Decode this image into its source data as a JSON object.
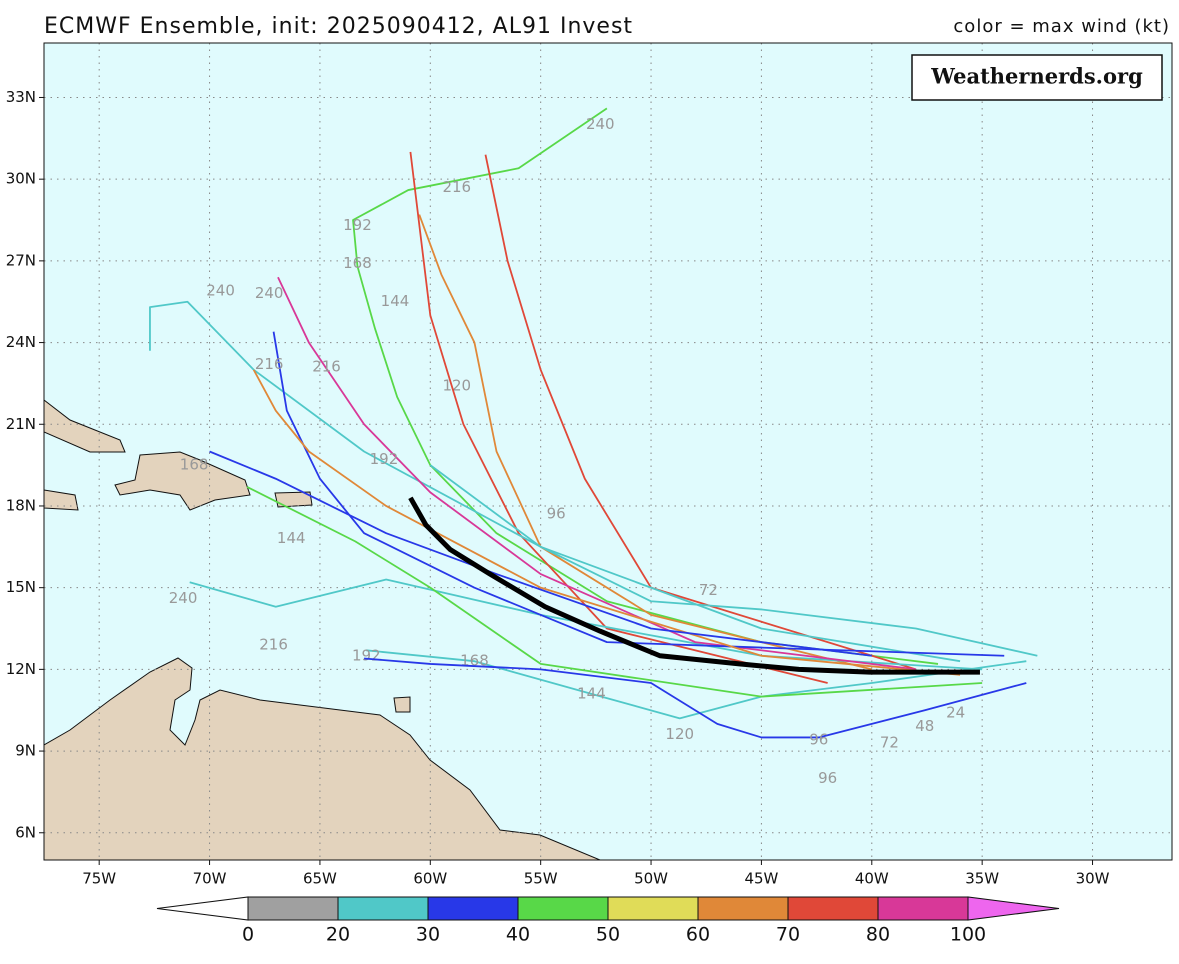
{
  "header": {
    "title": "ECMWF Ensemble, init: 2025090412, AL91 Invest",
    "legend_note": "color = max wind (kt)",
    "watermark": "Weathernerds.org"
  },
  "map": {
    "xlim": [
      -77.5,
      -26.4
    ],
    "ylim": [
      5,
      35
    ],
    "grid": true,
    "xticks": [
      {
        "value": -75,
        "label": "75W"
      },
      {
        "value": -70,
        "label": "70W"
      },
      {
        "value": -65,
        "label": "65W"
      },
      {
        "value": -60,
        "label": "60W"
      },
      {
        "value": -55,
        "label": "55W"
      },
      {
        "value": -50,
        "label": "50W"
      },
      {
        "value": -45,
        "label": "45W"
      },
      {
        "value": -40,
        "label": "40W"
      },
      {
        "value": -35,
        "label": "35W"
      },
      {
        "value": -30,
        "label": "30W"
      }
    ],
    "yticks": [
      {
        "value": 6,
        "label": "6N"
      },
      {
        "value": 9,
        "label": "9N"
      },
      {
        "value": 12,
        "label": "12N"
      },
      {
        "value": 15,
        "label": "15N"
      },
      {
        "value": 18,
        "label": "18N"
      },
      {
        "value": 21,
        "label": "21N"
      },
      {
        "value": 24,
        "label": "24N"
      },
      {
        "value": 27,
        "label": "27N"
      },
      {
        "value": 30,
        "label": "30N"
      },
      {
        "value": 33,
        "label": "33N"
      }
    ],
    "tracks": [
      {
        "color": "#58d848",
        "lon": [
          -37,
          -45,
          -52,
          -57,
          -60,
          -61.5,
          -62.5,
          -63.3,
          -63.5,
          -61,
          -56,
          -52
        ],
        "lat": [
          12.2,
          13,
          14.5,
          17,
          19.5,
          22,
          24.5,
          26.8,
          28.5,
          29.6,
          30.4,
          32.6
        ],
        "labels": [
          {
            "hour": 240,
            "lon": -52.3,
            "lat": 32.0
          },
          {
            "hour": 216,
            "lon": -58.8,
            "lat": 29.7
          },
          {
            "hour": 192,
            "lon": -63.3,
            "lat": 28.3
          },
          {
            "hour": 168,
            "lon": -63.3,
            "lat": 26.9
          },
          {
            "hour": 144,
            "lon": -61.6,
            "lat": 25.5
          },
          {
            "hour": 120,
            "lon": -58.8,
            "lat": 22.4
          }
        ]
      },
      {
        "color": "#e04838",
        "lon": [
          -38,
          -50,
          -53,
          -55,
          -56.5,
          -57.5
        ],
        "lat": [
          12,
          15,
          19,
          23,
          27,
          30.9
        ],
        "labels": []
      },
      {
        "color": "#e08838",
        "lon": [
          -40,
          -50,
          -55,
          -57,
          -58,
          -59.5,
          -60.5
        ],
        "lat": [
          12,
          14,
          16.5,
          20,
          24,
          26.5,
          28.7
        ],
        "labels": []
      },
      {
        "color": "#e04838",
        "lon": [
          -42,
          -52,
          -56,
          -58.5,
          -60,
          -60.9
        ],
        "lat": [
          11.5,
          13.5,
          17,
          21,
          25,
          31
        ],
        "labels": []
      },
      {
        "color": "#50c8c8",
        "lon": [
          -35,
          -45,
          -55,
          -62,
          -67,
          -70.9
        ],
        "lat": [
          12,
          12.5,
          14,
          15.3,
          14.3,
          15.2
        ],
        "labels": [
          {
            "hour": 240,
            "lon": -71.2,
            "lat": 14.6
          },
          {
            "hour": 216,
            "lon": -67.1,
            "lat": 12.9
          }
        ]
      },
      {
        "color": "#50c8c8",
        "lon": [
          -36,
          -45,
          -55,
          -63,
          -68,
          -71,
          -72.7,
          -72.7
        ],
        "lat": [
          12.3,
          13.5,
          16.5,
          20,
          23,
          25.5,
          25.3,
          23.7
        ],
        "labels": [
          {
            "hour": 240,
            "lon": -69.5,
            "lat": 25.9
          }
        ]
      },
      {
        "color": "#d83898",
        "lon": [
          -38,
          -48,
          -55,
          -60,
          -63,
          -65.5,
          -66.9
        ],
        "lat": [
          12,
          13,
          15.5,
          18.5,
          21,
          24,
          26.4
        ],
        "labels": [
          {
            "hour": 240,
            "lon": -67.3,
            "lat": 25.8
          }
        ]
      },
      {
        "color": "#2838e8",
        "lon": [
          -34,
          -45,
          -52,
          -58,
          -63,
          -65,
          -66.5,
          -67.1
        ],
        "lat": [
          12.5,
          12.8,
          13,
          15,
          17,
          19,
          21.5,
          24.4
        ],
        "labels": [
          {
            "hour": 216,
            "lon": -64.7,
            "lat": 23.1
          }
        ]
      },
      {
        "color": "#50c8c8",
        "lon": [
          -33,
          -40,
          -45,
          -48.7,
          -52.7,
          -58,
          -62.9
        ],
        "lat": [
          12.3,
          11.5,
          11,
          10.2,
          11.1,
          12.3,
          12.7
        ],
        "labels": [
          {
            "hour": 192,
            "lon": -62.9,
            "lat": 12.5
          },
          {
            "hour": 168,
            "lon": -58.0,
            "lat": 12.3
          },
          {
            "hour": 144,
            "lon": -52.7,
            "lat": 11.1
          },
          {
            "hour": 120,
            "lon": -48.7,
            "lat": 9.6
          }
        ]
      },
      {
        "color": "#e08838",
        "lon": [
          -36,
          -45,
          -55,
          -62,
          -65.5,
          -67,
          -68
        ],
        "lat": [
          11.8,
          12.5,
          15,
          18,
          20,
          21.5,
          23
        ],
        "labels": [
          {
            "hour": 216,
            "lon": -67.3,
            "lat": 23.2
          }
        ]
      },
      {
        "color": "#58d848",
        "lon": [
          -35,
          -45,
          -55,
          -60,
          -63.4,
          -68.3
        ],
        "lat": [
          11.5,
          11,
          12.2,
          15,
          16.7,
          18.7
        ],
        "labels": [
          {
            "hour": 144,
            "lon": -66.3,
            "lat": 16.8
          }
        ]
      },
      {
        "color": "#2838e8",
        "lon": [
          -33,
          -37.6,
          -40,
          -42.4,
          -45,
          -47,
          -50,
          -55,
          -60,
          -63
        ],
        "lat": [
          11.5,
          10.5,
          10,
          9.5,
          9.5,
          10,
          11.5,
          12,
          12.2,
          12.4
        ],
        "labels": [
          {
            "hour": 96,
            "lon": -42.4,
            "lat": 9.4
          },
          {
            "hour": 96,
            "lon": -42.0,
            "lat": 8.0
          },
          {
            "hour": 72,
            "lon": -39.2,
            "lat": 9.3
          },
          {
            "hour": 48,
            "lon": -37.6,
            "lat": 9.9
          },
          {
            "hour": 24,
            "lon": -36.2,
            "lat": 10.4
          }
        ]
      },
      {
        "color": "#50c8c8",
        "lon": [
          -32.5,
          -38,
          -45,
          -50,
          -55,
          -60
        ],
        "lat": [
          12.5,
          13.5,
          14.2,
          14.5,
          16.5,
          19.5
        ],
        "labels": [
          {
            "hour": 72,
            "lon": -47.4,
            "lat": 14.9
          },
          {
            "hour": 96,
            "lon": -54.3,
            "lat": 17.7
          }
        ]
      },
      {
        "color": "#2838e8",
        "lon": [
          -40,
          -50,
          -57,
          -62,
          -67,
          -70
        ],
        "lat": [
          12.5,
          13.5,
          15.5,
          17,
          19,
          20
        ],
        "labels": [
          {
            "hour": 168,
            "lon": -70.7,
            "lat": 19.5
          },
          {
            "hour": 192,
            "lon": -62.1,
            "lat": 19.7
          }
        ]
      }
    ],
    "mean_track": {
      "color": "#000000",
      "lon": [
        -60.9,
        -60.2,
        -59.1,
        -57.3,
        -54.8,
        -52.3,
        -49.6,
        -46.0,
        -43.3,
        -40.1,
        -36.9,
        -35.1
      ],
      "lat": [
        18.3,
        17.3,
        16.4,
        15.5,
        14.3,
        13.4,
        12.5,
        12.2,
        12.0,
        11.9,
        11.9,
        11.9
      ]
    }
  },
  "colorbar": {
    "bounds": [
      0,
      20,
      30,
      40,
      50,
      60,
      70,
      80,
      100
    ],
    "colors": [
      "#a0a0a0",
      "#50c8c8",
      "#2838e8",
      "#58d848",
      "#e0dc58",
      "#e08838",
      "#e04838",
      "#d83898"
    ],
    "under_color": "#ffffff",
    "over_color": "#ee66ee"
  }
}
